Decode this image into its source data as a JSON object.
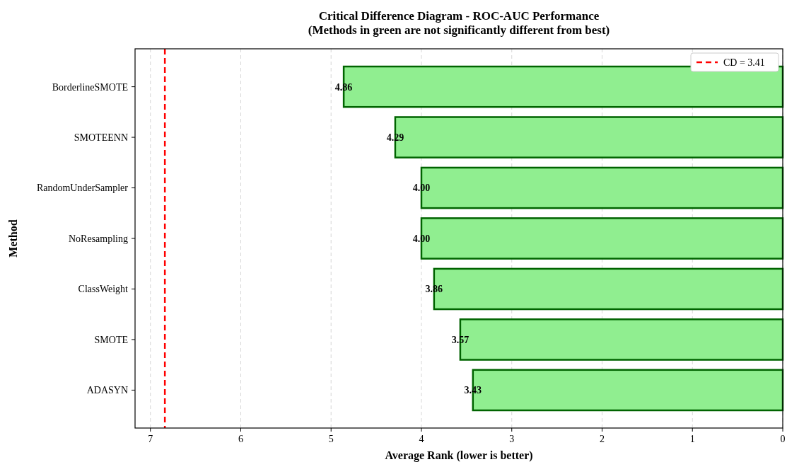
{
  "chart_data": {
    "type": "bar",
    "orientation": "horizontal",
    "title": "Critical Difference Diagram - ROC-AUC Performance\n(Methods in green are not significantly different from best)",
    "xlabel": "Average Rank (lower is better)",
    "ylabel": "Method",
    "categories": [
      "BorderlineSMOTE",
      "SMOTEENN",
      "RandomUnderSampler",
      "NoResampling",
      "ClassWeight",
      "SMOTE",
      "ADASYN"
    ],
    "series": [
      {
        "color": "#90ee90",
        "values": [
          4.86,
          4.29,
          4.0,
          4.0,
          3.86,
          3.57,
          3.43
        ]
      }
    ],
    "value_labels": [
      "4.86",
      "4.29",
      "4.00",
      "4.00",
      "3.86",
      "3.57",
      "3.43"
    ],
    "xlim": [
      7.17,
      0
    ],
    "xticks": [
      7,
      6,
      5,
      4,
      3,
      2,
      1,
      0
    ],
    "grid": "x",
    "ref_lines": [
      {
        "axis": "x",
        "value": 6.84,
        "color": "#ff0000",
        "line_style": "dashed"
      }
    ],
    "annotations": [
      "CD = 3.41"
    ]
  }
}
